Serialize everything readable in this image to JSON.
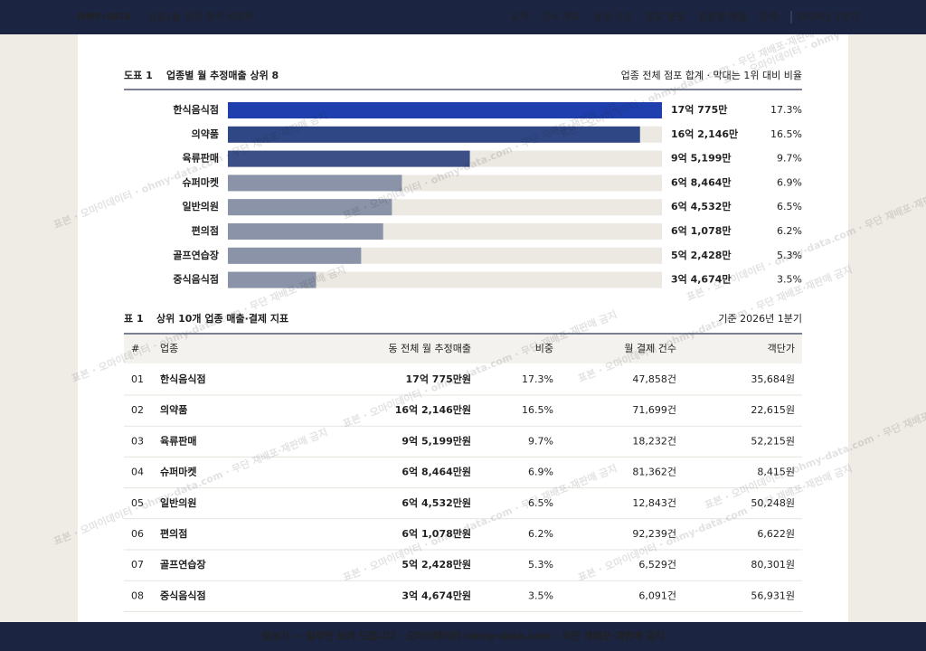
{
  "nav": {
    "brand": "OHMY-DATA",
    "title": "신길1동 상권 분석 리포트",
    "links": [
      "요약",
      "조사 개요",
      "상권 규모",
      "점포 분포",
      "업종별 매출",
      "한계"
    ],
    "period": "2026년 1분기"
  },
  "chart_data": {
    "type": "bar",
    "label": "도표 1",
    "title": "업종별 월 추정매출 상위 8",
    "note": "업종 전체 점포 합계 · 막대는 1위 대비 비율",
    "categories": [
      "한식음식점",
      "의약품",
      "육류판매",
      "슈퍼마켓",
      "일반의원",
      "편의점",
      "골프연습장",
      "중식음식점"
    ],
    "values": [
      170775,
      162146,
      95199,
      68464,
      64532,
      61078,
      52428,
      34674
    ],
    "value_labels": [
      "17억 775만",
      "16억 2,146만",
      "9억 5,199만",
      "6억 8,464만",
      "6억 4,532만",
      "6억 1,078만",
      "5억 2,428만",
      "3억 4,674만"
    ],
    "shares": [
      "17.3%",
      "16.5%",
      "9.7%",
      "6.9%",
      "6.5%",
      "6.2%",
      "5.3%",
      "3.5%"
    ],
    "colors": [
      "#1f3fae",
      "#2f4785",
      "#3c4f86",
      "#8a93a8",
      "#8a93a8",
      "#8a93a8",
      "#8a93a8",
      "#8a93a8"
    ]
  },
  "table": {
    "label": "표 1",
    "title": "상위 10개 업종 매출·결제 지표",
    "note": "기준 2026년 1분기",
    "columns": [
      "#",
      "업종",
      "동 전체 월 추정매출",
      "비중",
      "월 결제 건수",
      "객단가"
    ],
    "rows": [
      [
        "01",
        "한식음식점",
        "17억 775만원",
        "17.3%",
        "47,858건",
        "35,684원"
      ],
      [
        "02",
        "의약품",
        "16억 2,146만원",
        "16.5%",
        "71,699건",
        "22,615원"
      ],
      [
        "03",
        "육류판매",
        "9억 5,199만원",
        "9.7%",
        "18,232건",
        "52,215원"
      ],
      [
        "04",
        "슈퍼마켓",
        "6억 8,464만원",
        "6.9%",
        "81,362건",
        "8,415원"
      ],
      [
        "05",
        "일반의원",
        "6억 4,532만원",
        "6.5%",
        "12,843건",
        "50,248원"
      ],
      [
        "06",
        "편의점",
        "6억 1,078만원",
        "6.2%",
        "92,239건",
        "6,622원"
      ],
      [
        "07",
        "골프연습장",
        "5억 2,428만원",
        "5.3%",
        "6,529건",
        "80,301원"
      ],
      [
        "08",
        "중식음식점",
        "3억 4,674만원",
        "3.5%",
        "6,091건",
        "56,931원"
      ]
    ]
  },
  "watermark": "표본 · 오마이데이터 · ohmy-data.com · 무단 재배포·재판매 금지",
  "footer": "맛보기 — 일부만 보여 드립니다 · 오마이데이터 ohmy-data.com · 무단 재배포·재판매 금지"
}
